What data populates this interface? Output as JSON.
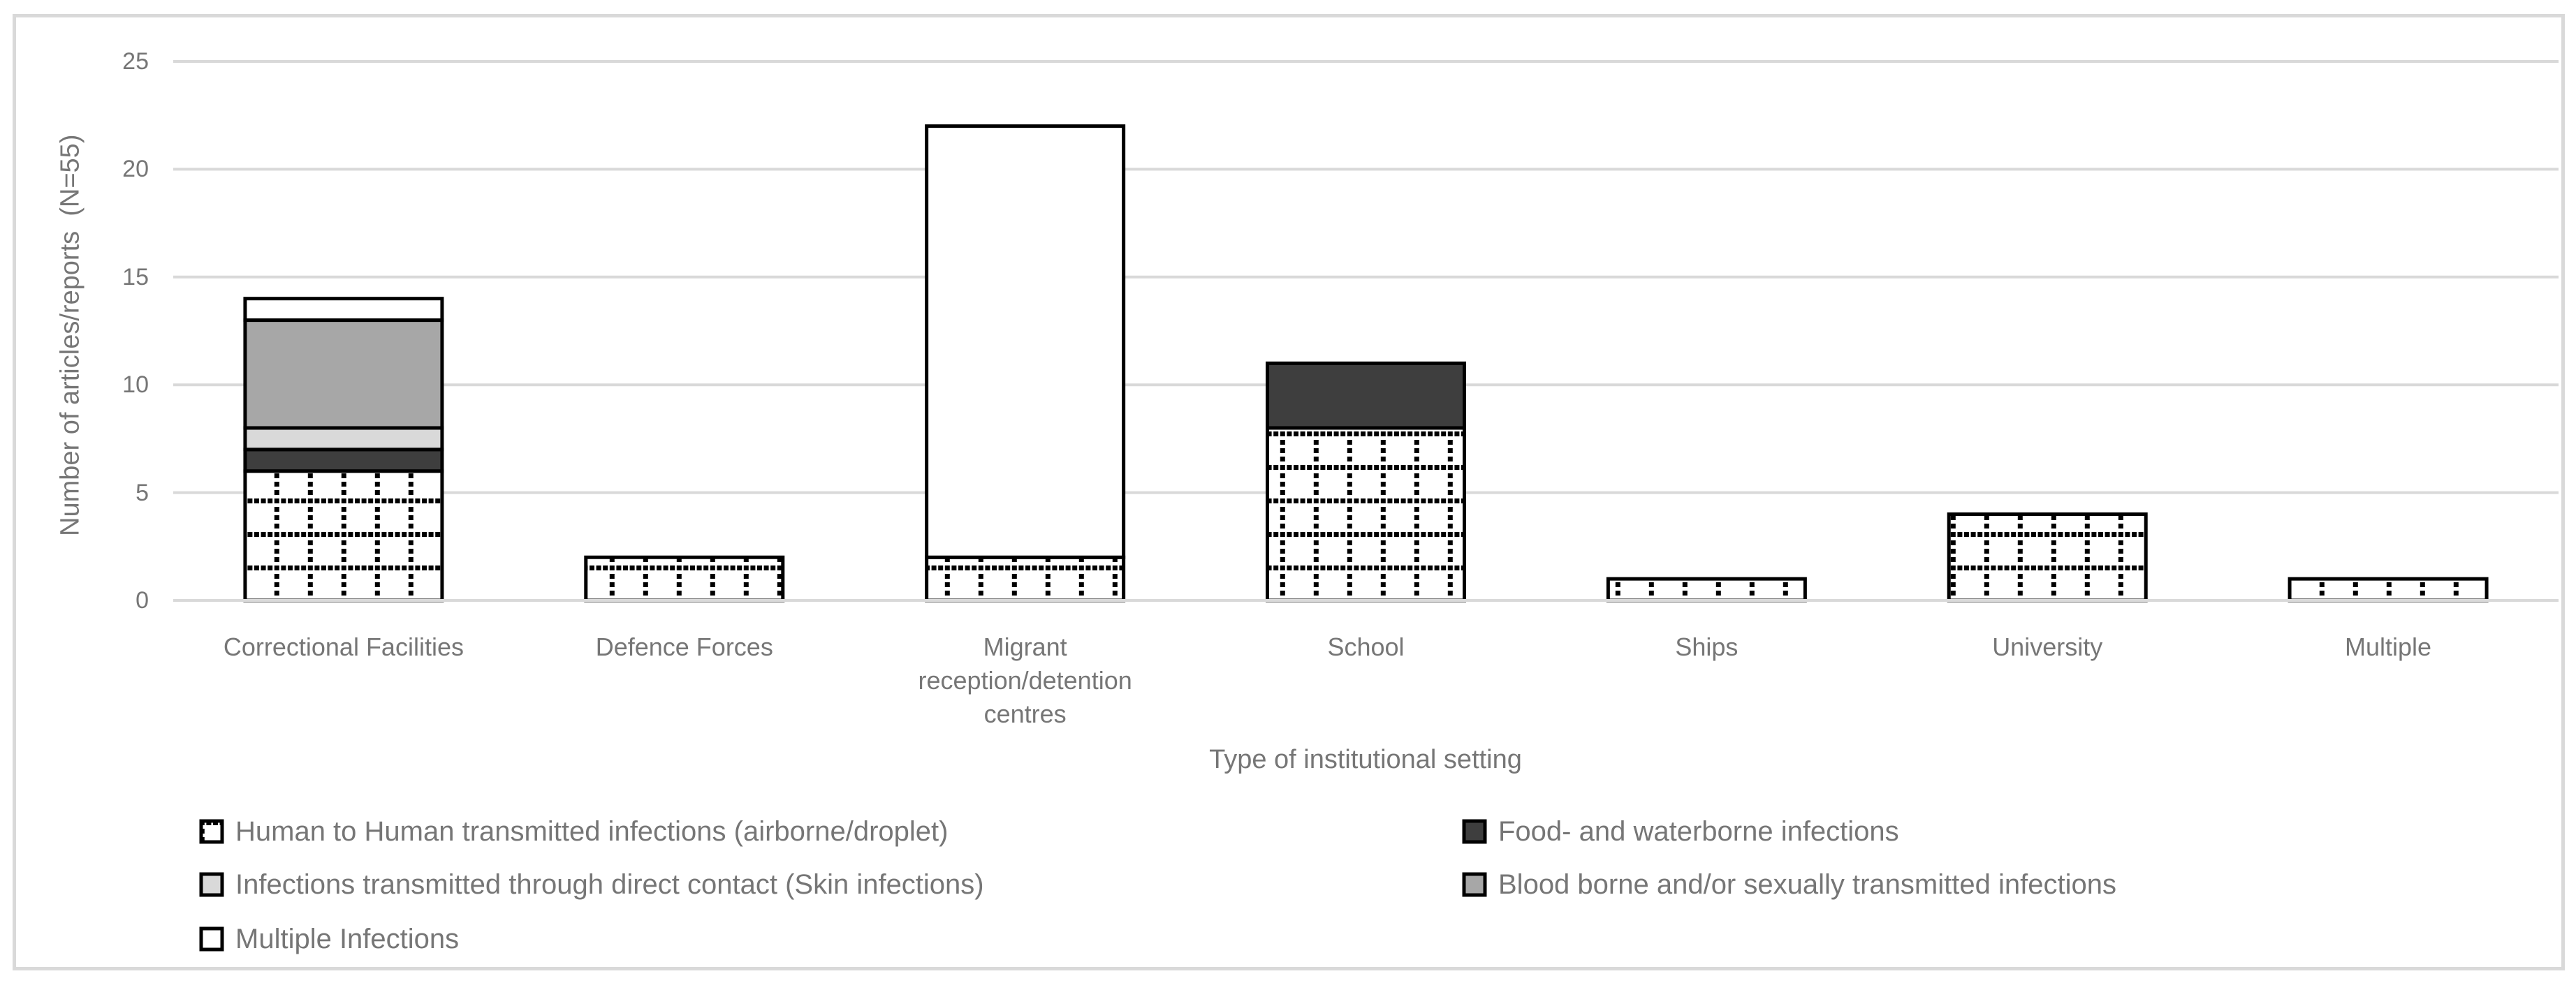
{
  "chart_data": {
    "type": "bar",
    "stacked": true,
    "title": "",
    "xlabel": "Type of institutional setting",
    "ylabel": "Number of articles/reports  (N=55)",
    "ylim": [
      0,
      25
    ],
    "yticks": [
      0,
      5,
      10,
      15,
      20,
      25
    ],
    "grid": true,
    "legend_position": "bottom-two-columns",
    "categories": [
      "Correctional Facilities",
      "Defence Forces",
      "Migrant reception/detention centres",
      "School",
      "Ships",
      "University",
      "Multiple"
    ],
    "category_label_lines": [
      [
        "Correctional Facilities"
      ],
      [
        "Defence Forces"
      ],
      [
        "Migrant",
        "reception/detention",
        "centres"
      ],
      [
        "School"
      ],
      [
        "Ships"
      ],
      [
        "University"
      ],
      [
        "Multiple"
      ]
    ],
    "series": [
      {
        "name": "Human to Human transmitted infections (airborne/droplet)",
        "key": "h2h",
        "fill": "pattern-dotted-grid",
        "values": [
          6,
          2,
          2,
          8,
          1,
          4,
          1
        ]
      },
      {
        "name": "Food- and waterborne infections",
        "key": "food",
        "fill": "#3e3e3e",
        "values": [
          1,
          0,
          0,
          3,
          0,
          0,
          0
        ]
      },
      {
        "name": "Infections transmitted through direct contact (Skin infections)",
        "key": "skin",
        "fill": "#d9d9d9",
        "values": [
          1,
          0,
          0,
          0,
          0,
          0,
          0
        ]
      },
      {
        "name": "Blood borne and/or sexually transmitted infections",
        "key": "blood",
        "fill": "#a7a7a7",
        "values": [
          5,
          0,
          0,
          0,
          0,
          0,
          0
        ]
      },
      {
        "name": "Multiple Infections",
        "key": "multiple",
        "fill": "#ffffff",
        "values": [
          1,
          0,
          20,
          0,
          0,
          0,
          0
        ]
      }
    ],
    "bar_totals": [
      14,
      2,
      22,
      11,
      1,
      4,
      1
    ],
    "legend_columns": [
      [
        0,
        2,
        4
      ],
      [
        1,
        3
      ]
    ]
  },
  "colors": {
    "bar_border": "#000000",
    "gridline": "#d9d9d9",
    "frame_border": "#d9d9d9",
    "axis_text": "#767676",
    "pattern_dot": "#000000",
    "pattern_background": "#ffffff"
  }
}
